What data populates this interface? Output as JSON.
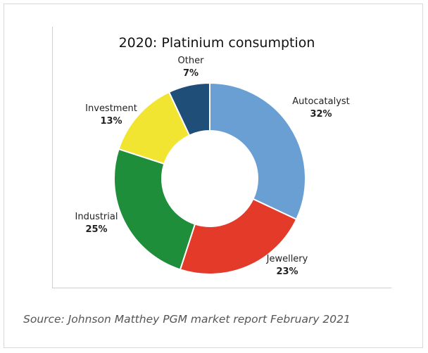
{
  "chart_data": {
    "type": "pie",
    "variant": "donut",
    "title": "2020: Platinium consumption",
    "slices": [
      {
        "label": "Autocatalyst",
        "value": 32,
        "value_label": "32%",
        "color": "#6a9fd4"
      },
      {
        "label": "Jewellery",
        "value": 23,
        "value_label": "23%",
        "color": "#e33a2a"
      },
      {
        "label": "Industrial",
        "value": 25,
        "value_label": "25%",
        "color": "#1e8e3a"
      },
      {
        "label": "Investment",
        "value": 13,
        "value_label": "13%",
        "color": "#f2e531"
      },
      {
        "label": "Other",
        "value": 7,
        "value_label": "7%",
        "color": "#1f4e79"
      }
    ]
  },
  "caption": {
    "source": "Source: Johnson Matthey PGM market report February 2021"
  }
}
